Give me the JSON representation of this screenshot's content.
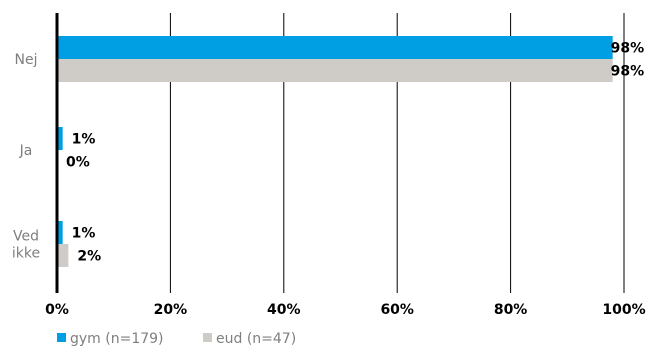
{
  "chart_data": {
    "type": "bar",
    "orientation": "horizontal",
    "categories": [
      "Nej",
      "Ja",
      "Ved ikke"
    ],
    "category_lines": [
      [
        "Nej"
      ],
      [
        "Ja"
      ],
      [
        "Ved",
        "ikke"
      ]
    ],
    "series": [
      {
        "name": "gym (n=179)",
        "values": [
          98,
          1,
          1
        ],
        "labels": [
          "98%",
          "1%",
          "1%"
        ],
        "color": "#009fe3"
      },
      {
        "name": "eud (n=47)",
        "values": [
          98,
          0,
          2
        ],
        "labels": [
          "98%",
          "0%",
          "2%"
        ],
        "color": "#cfccc7"
      }
    ],
    "xlim": [
      0,
      100
    ],
    "x_ticks": [
      0,
      20,
      40,
      60,
      80,
      100
    ],
    "x_tick_labels": [
      "0%",
      "20%",
      "40%",
      "60%",
      "80%",
      "100%"
    ],
    "grid": true,
    "legend_position": "bottom-left",
    "title": "",
    "xlabel": "",
    "ylabel": ""
  }
}
